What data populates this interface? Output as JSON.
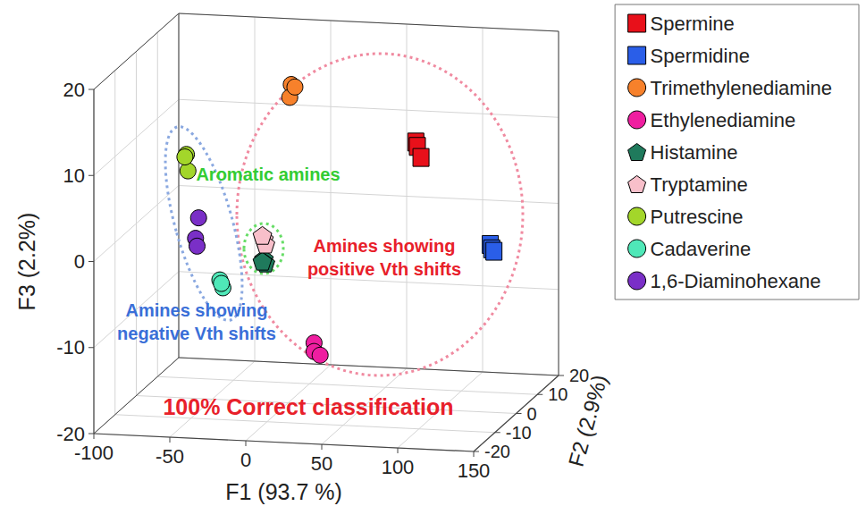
{
  "chart_data": {
    "type": "scatter",
    "xlabel": "F1 (93.7 %)",
    "ylabel": "F2 (2.9%)",
    "zlabel": "F3 (2.2%)",
    "xlim": [
      -100,
      150
    ],
    "xticks": [
      -100,
      -50,
      0,
      50,
      100,
      150
    ],
    "ylim": [
      -20,
      20
    ],
    "yticks": [
      -20,
      -10,
      0,
      10,
      20
    ],
    "zlim": [
      -20,
      20
    ],
    "zticks": [
      -20,
      -10,
      0,
      10,
      20
    ],
    "grid": true,
    "legend": "upper right",
    "series": [
      {
        "name": "Spermine",
        "color": "#e8101a",
        "marker": "square",
        "x": [
          84,
          85,
          86
        ],
        "y": [
          0,
          0,
          1
        ],
        "z": [
          11,
          10.5,
          9
        ]
      },
      {
        "name": "Spermidine",
        "color": "#2a5ee8",
        "marker": "square",
        "x": [
          133,
          134,
          134
        ],
        "y": [
          0,
          0,
          1
        ],
        "z": [
          -0.5,
          -1,
          -1.5
        ]
      },
      {
        "name": "Trimethylenediamine",
        "color": "#f7812b",
        "marker": "circle",
        "x": [
          2,
          1,
          3
        ],
        "y": [
          0,
          0,
          1
        ],
        "z": [
          17,
          15.5,
          16.5
        ]
      },
      {
        "name": "Ethylenediamine",
        "color": "#ef1ea0",
        "marker": "circle",
        "x": [
          17,
          17,
          21
        ],
        "y": [
          0,
          0,
          0
        ],
        "z": [
          -12.9,
          -13.9,
          -14.3
        ]
      },
      {
        "name": "Histamine",
        "color": "#1f7a5c",
        "marker": "pentagon",
        "x": [
          -16,
          -15,
          -17
        ],
        "y": [
          0,
          0,
          0
        ],
        "z": [
          -3.5,
          -4,
          -3.8
        ]
      },
      {
        "name": "Tryptamine",
        "color": "#f8bfca",
        "marker": "pentagon",
        "x": [
          -16,
          -15,
          -17
        ],
        "y": [
          0,
          0,
          0
        ],
        "z": [
          -1.2,
          -1.8,
          -0.8
        ]
      },
      {
        "name": "Putrescine",
        "color": "#a3d62a",
        "marker": "circle",
        "x": [
          -67,
          -66,
          -68
        ],
        "y": [
          0,
          0,
          0
        ],
        "z": [
          8.3,
          6.4,
          8
        ]
      },
      {
        "name": "Cadaverine",
        "color": "#4fe8b8",
        "marker": "circle",
        "x": [
          -45,
          -43,
          -44
        ],
        "y": [
          0,
          0,
          0
        ],
        "z": [
          -6.1,
          -7,
          -6.5
        ]
      },
      {
        "name": "1,6-Diaminohexane",
        "color": "#7a2fc7",
        "marker": "circle",
        "x": [
          -59,
          -61,
          -60
        ],
        "y": [
          0,
          0,
          0
        ],
        "z": [
          1,
          -1.4,
          -2.3
        ]
      }
    ],
    "annotations": [
      {
        "text": "Aromatic amines",
        "color": "#33cc33"
      },
      {
        "text": "Amines showing\npositive Vth shifts",
        "color": "#e8202a"
      },
      {
        "text": "Amines showing\nnegative Vth shifts",
        "color": "#3a6fd8"
      },
      {
        "text": "100% Correct classification",
        "color": "#e8202a"
      }
    ]
  }
}
